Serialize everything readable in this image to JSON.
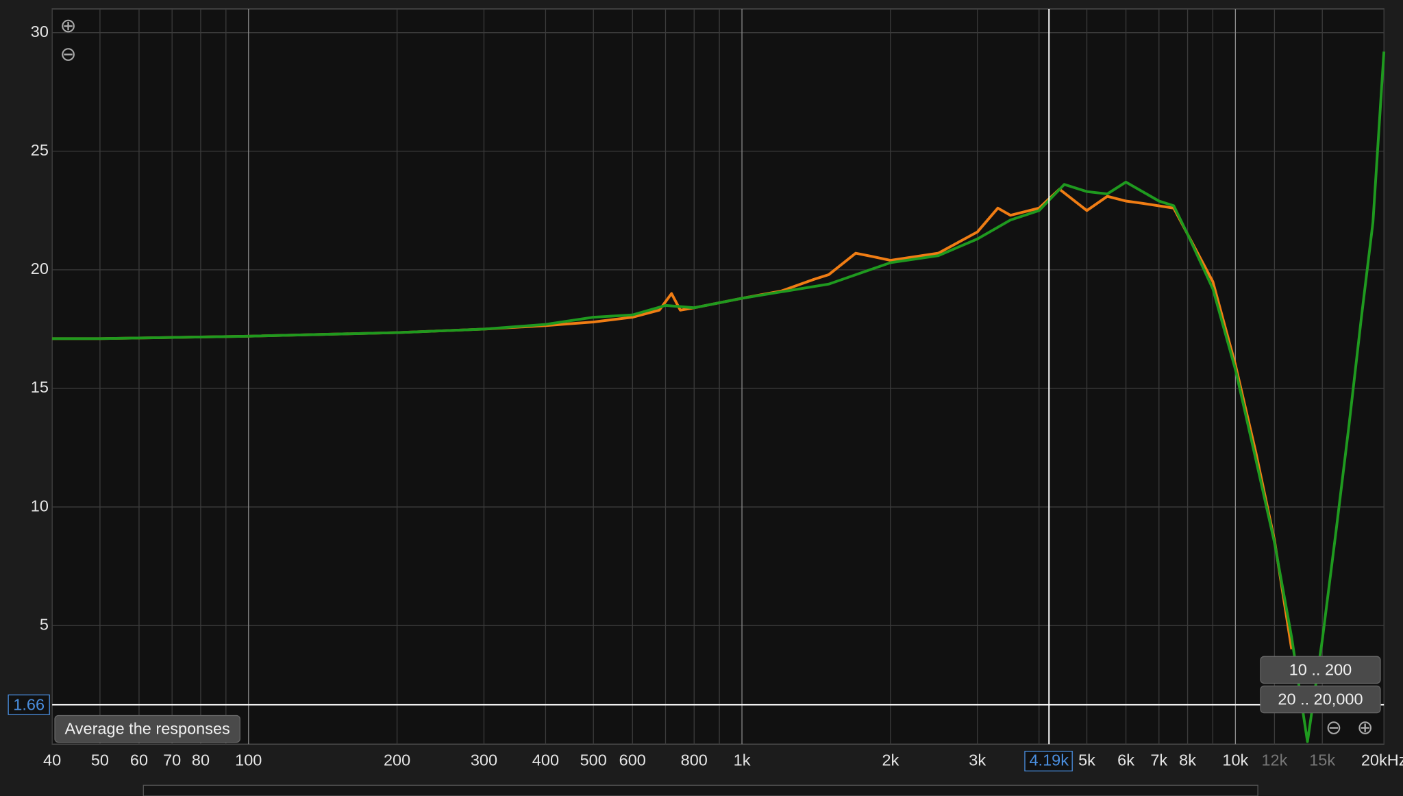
{
  "chart_data": {
    "type": "line",
    "log_x": true,
    "grid": true,
    "xlim": [
      40,
      20000
    ],
    "ylim": [
      0,
      31
    ],
    "yticks": [
      5,
      10,
      15,
      20,
      25,
      30
    ],
    "xticks": [
      40,
      50,
      60,
      70,
      80,
      100,
      200,
      300,
      400,
      500,
      600,
      800,
      {
        "value": 1000,
        "label": "1k"
      },
      {
        "value": 2000,
        "label": "2k"
      },
      {
        "value": 3000,
        "label": "3k"
      },
      {
        "value": 5000,
        "label": "5k"
      },
      {
        "value": 6000,
        "label": "6k"
      },
      {
        "value": 7000,
        "label": "7k"
      },
      {
        "value": 8000,
        "label": "8k"
      },
      {
        "value": 10000,
        "label": "10k"
      },
      {
        "value": 12000,
        "label": "12k"
      },
      {
        "value": 15000,
        "label": "15k"
      },
      {
        "value": 20000,
        "label": "20kHz"
      }
    ],
    "minor_xticks": [
      90,
      700,
      900,
      4000,
      9000
    ],
    "cursor": {
      "x": {
        "value": 4190,
        "label": "4.19k"
      },
      "y": 1.66
    },
    "buttons": [
      "Average the responses",
      "10 .. 200",
      "20 .. 20,000"
    ],
    "series": [
      {
        "name": "orange",
        "color": "#f07d14",
        "x": [
          40,
          50,
          100,
          200,
          300,
          400,
          500,
          600,
          680,
          720,
          750,
          800,
          1000,
          1200,
          1400,
          1500,
          1700,
          1800,
          2000,
          2500,
          3000,
          3300,
          3500,
          4000,
          4400,
          5000,
          5500,
          6000,
          6500,
          7500,
          8000,
          9000,
          10000,
          11000,
          12000,
          13000
        ],
        "values": [
          17.1,
          17.1,
          17.2,
          17.35,
          17.5,
          17.65,
          17.8,
          18.0,
          18.3,
          19.0,
          18.3,
          18.4,
          18.8,
          19.1,
          19.6,
          19.8,
          20.7,
          20.6,
          20.4,
          20.7,
          21.6,
          22.6,
          22.3,
          22.6,
          23.4,
          22.5,
          23.1,
          22.9,
          22.8,
          22.6,
          21.5,
          19.5,
          16.0,
          12.3,
          8.6,
          4.0
        ]
      },
      {
        "name": "green",
        "color": "#1f9a1f",
        "x": [
          40,
          50,
          100,
          200,
          300,
          400,
          500,
          600,
          700,
          800,
          1000,
          1500,
          2000,
          2500,
          3000,
          3500,
          4000,
          4500,
          5000,
          5500,
          6000,
          7000,
          7500,
          8000,
          9000,
          10000,
          11000,
          12000,
          13000,
          14000,
          15000,
          16000,
          17000,
          18000,
          19000,
          20000
        ],
        "values": [
          17.1,
          17.1,
          17.2,
          17.35,
          17.5,
          17.7,
          18.0,
          18.1,
          18.5,
          18.4,
          18.8,
          19.4,
          20.3,
          20.6,
          21.3,
          22.1,
          22.5,
          23.6,
          23.3,
          23.2,
          23.7,
          22.9,
          22.7,
          21.5,
          19.2,
          15.8,
          12.0,
          8.5,
          4.5,
          0.1,
          4.4,
          9.0,
          13.5,
          18.0,
          22.0,
          29.2
        ]
      }
    ]
  }
}
